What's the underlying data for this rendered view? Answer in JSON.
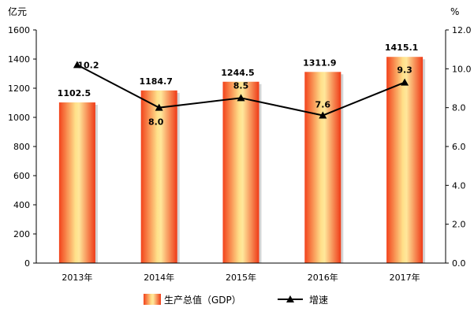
{
  "chart_data": {
    "type": "bar",
    "title": "",
    "categories": [
      "2013年",
      "2014年",
      "2015年",
      "2016年",
      "2017年"
    ],
    "left_axis": {
      "unit": "亿元",
      "ylim": [
        0,
        1600
      ],
      "ticks": [
        "0",
        "200",
        "400",
        "600",
        "800",
        "1000",
        "1200",
        "1400",
        "1600"
      ]
    },
    "right_axis": {
      "unit": "%",
      "ylim": [
        0,
        12
      ],
      "ticks": [
        "0.0",
        "2.0",
        "4.0",
        "6.0",
        "8.0",
        "10.0",
        "12.0"
      ]
    },
    "series": [
      {
        "name": "生产总值（GDP）",
        "type": "bar",
        "axis": "left",
        "values": [
          1102.5,
          1184.7,
          1244.5,
          1311.9,
          1415.1
        ],
        "labels": [
          "1102.5",
          "1184.7",
          "1244.5",
          "1311.9",
          "1415.1"
        ],
        "color": "#f5a623"
      },
      {
        "name": "增速",
        "type": "line",
        "axis": "right",
        "values": [
          10.2,
          8.0,
          8.5,
          7.6,
          9.3
        ],
        "labels": [
          "10.2",
          "8.0",
          "8.5",
          "7.6",
          "9.3"
        ],
        "color": "#000000",
        "marker": "triangle"
      }
    ],
    "grid": false,
    "legend_position": "bottom-center"
  }
}
